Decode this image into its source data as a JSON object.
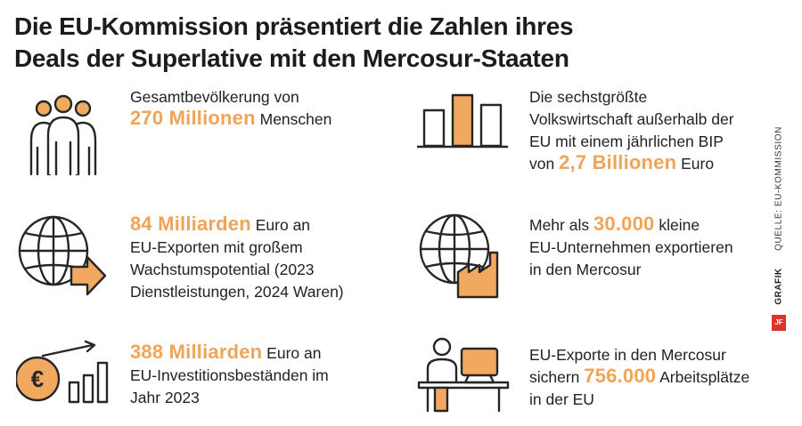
{
  "title": {
    "line1": "Die EU-Kommission präsentiert die Zahlen ihres",
    "line2": "Deals der Superlative mit den Mercosur-Staaten"
  },
  "source": "QUELLE: EU-KOMMISSION",
  "grafik_label": "GRAFIK",
  "badge": "JF",
  "colors": {
    "accent": "#f0a458",
    "stroke": "#262626",
    "fill": "#f1a95f"
  },
  "items": [
    {
      "icon": "people-icon",
      "lines": [
        {
          "pre": "Gesamtbevölkerung von",
          "hl": "",
          "post": ""
        },
        {
          "pre": "",
          "hl": "270 Millionen",
          "post": " Menschen"
        }
      ]
    },
    {
      "icon": "bar-chart-icon",
      "lines": [
        {
          "pre": "Die sechstgrößte",
          "hl": "",
          "post": ""
        },
        {
          "pre": "Volkswirtschaft außerhalb der",
          "hl": "",
          "post": ""
        },
        {
          "pre": "EU mit einem jährlichen BIP",
          "hl": "",
          "post": ""
        },
        {
          "pre": "von ",
          "hl": "2,7 Billionen",
          "post": " Euro"
        }
      ]
    },
    {
      "icon": "globe-export-icon",
      "lines": [
        {
          "pre": "",
          "hl": "84 Milliarden",
          "post": " Euro an"
        },
        {
          "pre": "EU-Exporten mit großem",
          "hl": "",
          "post": ""
        },
        {
          "pre": "Wachstumspotential (2023",
          "hl": "",
          "post": ""
        },
        {
          "pre": "Dienstleistungen, 2024 Waren)",
          "hl": "",
          "post": ""
        }
      ]
    },
    {
      "icon": "globe-factory-icon",
      "lines": [
        {
          "pre": "Mehr als ",
          "hl": "30.000",
          "post": " kleine"
        },
        {
          "pre": "EU-Unternehmen exportieren",
          "hl": "",
          "post": ""
        },
        {
          "pre": "in den Mercosur",
          "hl": "",
          "post": ""
        }
      ]
    },
    {
      "icon": "euro-growth-icon",
      "lines": [
        {
          "pre": "",
          "hl": "388 Milliarden",
          "post": " Euro an"
        },
        {
          "pre": "EU-Investitionsbeständen im",
          "hl": "",
          "post": ""
        },
        {
          "pre": "Jahr 2023",
          "hl": "",
          "post": ""
        }
      ]
    },
    {
      "icon": "workplace-icon",
      "lines": [
        {
          "pre": "EU-Exporte in den Mercosur",
          "hl": "",
          "post": ""
        },
        {
          "pre": "sichern ",
          "hl": "756.000",
          "post": " Arbeitsplätze"
        },
        {
          "pre": "in der EU",
          "hl": "",
          "post": ""
        }
      ]
    }
  ]
}
